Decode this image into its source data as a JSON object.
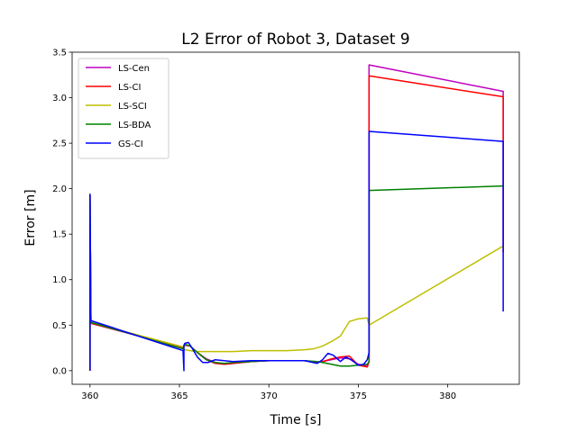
{
  "chart_data": {
    "type": "line",
    "title": "L2 Error of Robot 3, Dataset 9",
    "xlabel": "Time [s]",
    "ylabel": "Error [m]",
    "xlim": [
      359,
      384
    ],
    "ylim": [
      -0.15,
      3.5
    ],
    "xticks": [
      360,
      365,
      370,
      375,
      380
    ],
    "yticks": [
      0.0,
      0.5,
      1.0,
      1.5,
      2.0,
      2.5,
      3.0,
      3.5
    ],
    "xtick_labels": [
      "360",
      "365",
      "370",
      "375",
      "380"
    ],
    "ytick_labels": [
      "0.0",
      "0.5",
      "1.0",
      "1.5",
      "2.0",
      "2.5",
      "3.0",
      "3.5"
    ],
    "grid": false,
    "legend_position": "top-left",
    "series": [
      {
        "name": "LS-Cen",
        "color": "#bf00bf",
        "x": [
          360.0,
          360.0,
          360.05,
          365.2,
          365.25,
          365.3,
          365.6,
          366.0,
          366.5,
          367.0,
          367.5,
          368.0,
          369.0,
          370.0,
          371.0,
          372.0,
          372.7,
          373.0,
          373.5,
          374.0,
          374.5,
          375.0,
          375.5,
          375.6,
          375.6,
          383.1,
          383.1
        ],
        "y": [
          0.0,
          1.93,
          0.52,
          0.25,
          0.27,
          0.28,
          0.27,
          0.2,
          0.13,
          0.09,
          0.07,
          0.08,
          0.1,
          0.11,
          0.11,
          0.11,
          0.09,
          0.1,
          0.12,
          0.14,
          0.13,
          0.07,
          0.05,
          0.1,
          3.36,
          3.07,
          1.3
        ]
      },
      {
        "name": "LS-CI",
        "color": "#ff0000",
        "x": [
          360.0,
          360.0,
          360.05,
          365.2,
          365.25,
          365.3,
          365.6,
          366.0,
          366.5,
          367.0,
          367.5,
          368.0,
          369.0,
          370.0,
          371.0,
          372.0,
          372.7,
          373.0,
          373.5,
          374.0,
          374.5,
          375.0,
          375.5,
          375.6,
          375.6,
          383.1,
          383.1
        ],
        "y": [
          0.0,
          1.93,
          0.52,
          0.26,
          0.27,
          0.28,
          0.27,
          0.2,
          0.12,
          0.08,
          0.07,
          0.08,
          0.1,
          0.11,
          0.11,
          0.11,
          0.09,
          0.1,
          0.13,
          0.15,
          0.16,
          0.06,
          0.04,
          0.1,
          3.24,
          3.01,
          1.3
        ]
      },
      {
        "name": "LS-SCI",
        "color": "#bfbf00",
        "x": [
          360.0,
          360.0,
          360.05,
          365.2,
          365.3,
          365.6,
          366.0,
          367.0,
          368.0,
          369.0,
          370.0,
          371.0,
          372.0,
          372.5,
          373.0,
          373.5,
          374.0,
          374.5,
          375.0,
          375.5,
          375.6,
          375.6,
          383.1
        ],
        "y": [
          0.0,
          1.93,
          0.53,
          0.26,
          0.23,
          0.22,
          0.21,
          0.21,
          0.21,
          0.22,
          0.22,
          0.22,
          0.23,
          0.24,
          0.27,
          0.32,
          0.38,
          0.54,
          0.57,
          0.58,
          0.5,
          0.5,
          1.37
        ]
      },
      {
        "name": "LS-BDA",
        "color": "#008000",
        "x": [
          360.0,
          360.0,
          360.05,
          365.2,
          365.25,
          365.3,
          365.6,
          366.0,
          366.5,
          367.0,
          367.5,
          368.0,
          369.0,
          370.0,
          371.0,
          372.0,
          372.7,
          373.0,
          373.5,
          374.0,
          374.5,
          375.0,
          375.5,
          375.6,
          375.6,
          383.1
        ],
        "y": [
          0.0,
          1.93,
          0.53,
          0.24,
          0.27,
          0.29,
          0.27,
          0.2,
          0.12,
          0.09,
          0.08,
          0.09,
          0.1,
          0.11,
          0.11,
          0.11,
          0.1,
          0.09,
          0.07,
          0.05,
          0.05,
          0.06,
          0.07,
          0.1,
          1.98,
          2.03
        ]
      },
      {
        "name": "GS-CI",
        "color": "#0000ff",
        "x": [
          360.0,
          360.0,
          360.05,
          365.2,
          365.25,
          365.25,
          365.3,
          365.5,
          365.7,
          366.0,
          366.3,
          366.6,
          367.0,
          367.5,
          368.0,
          369.0,
          370.0,
          371.0,
          372.0,
          372.7,
          373.0,
          373.3,
          373.6,
          374.0,
          374.3,
          374.6,
          375.0,
          375.3,
          375.5,
          375.6,
          375.6,
          383.1,
          383.1
        ],
        "y": [
          0.0,
          1.94,
          0.55,
          0.22,
          0.0,
          0.28,
          0.3,
          0.31,
          0.25,
          0.15,
          0.09,
          0.09,
          0.12,
          0.11,
          0.1,
          0.11,
          0.11,
          0.11,
          0.11,
          0.08,
          0.12,
          0.19,
          0.17,
          0.1,
          0.15,
          0.12,
          0.06,
          0.07,
          0.12,
          0.2,
          2.63,
          2.52,
          0.65
        ]
      }
    ]
  }
}
